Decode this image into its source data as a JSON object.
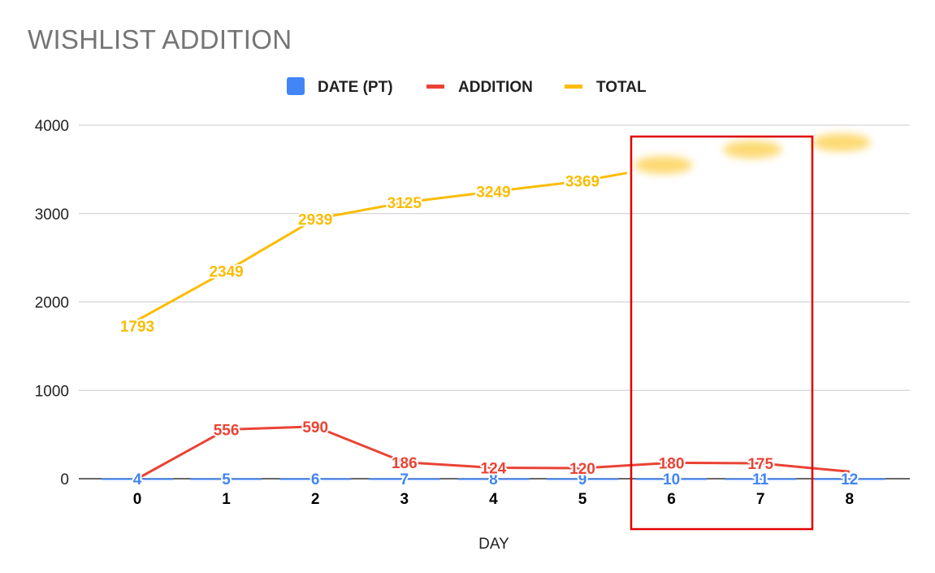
{
  "chart_data": {
    "type": "line",
    "title": "WISHLIST ADDITION",
    "xlabel": "DAY",
    "ylabel": "",
    "ylim": [
      0,
      4000
    ],
    "yticks": [
      0,
      1000,
      2000,
      3000,
      4000
    ],
    "categories": [
      "0",
      "1",
      "2",
      "3",
      "4",
      "5",
      "6",
      "7",
      "8"
    ],
    "grid": true,
    "legend_position": "top-center",
    "series": [
      {
        "name": "DATE (PT)",
        "color": "#4285f4",
        "marker": "square",
        "values": [
          4,
          5,
          6,
          7,
          8,
          9,
          10,
          11,
          12
        ],
        "labels": [
          "4",
          "5",
          "6",
          "7",
          "8",
          "9",
          "10",
          "11",
          "12"
        ]
      },
      {
        "name": "ADDITION",
        "color": "#ea4335",
        "marker": "line",
        "values": [
          0,
          556,
          590,
          186,
          124,
          120,
          180,
          175,
          80
        ],
        "labels": [
          "",
          "556",
          "590",
          "186",
          "124",
          "120",
          "180",
          "175",
          ""
        ]
      },
      {
        "name": "TOTAL",
        "color": "#fbbc04",
        "marker": "line",
        "values": [
          1793,
          2349,
          2939,
          3125,
          3249,
          3369,
          3549,
          3724,
          3804
        ],
        "labels": [
          "1793",
          "2349",
          "2939",
          "3125",
          "3249",
          "3369",
          "",
          "",
          ""
        ],
        "blurred_points": [
          6,
          7,
          8
        ]
      }
    ],
    "annotation": {
      "type": "highlight-box",
      "color": "#e00000",
      "covers_categories": [
        "6",
        "7"
      ]
    }
  }
}
